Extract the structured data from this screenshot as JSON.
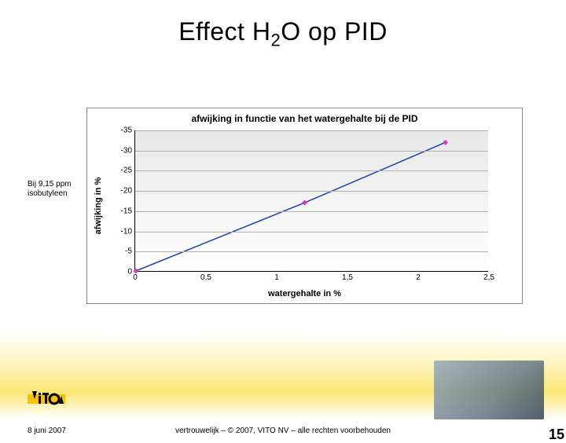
{
  "title": {
    "pre": "Effect H",
    "sub": "2",
    "post": "O op PID"
  },
  "side_note_line1": "Bij 9,15 ppm",
  "side_note_line2": "isobutyleen",
  "chart": {
    "type": "line",
    "title": "afwijking in functie van het watergehalte bij de PID",
    "xlabel": "watergehalte in %",
    "ylabel": "afwijking in %",
    "x_min": 0,
    "x_max": 2.5,
    "x_tick_step": 0.5,
    "y_min": 0,
    "y_max": -35,
    "y_tick_step": -5,
    "x_ticks": [
      "0",
      "0,5",
      "1",
      "1,5",
      "2",
      "2,5"
    ],
    "y_ticks": [
      "0",
      "-5",
      "-10",
      "-15",
      "-20",
      "-25",
      "-30",
      "-35"
    ],
    "series": {
      "x": [
        0,
        1.2,
        2.2
      ],
      "y": [
        0,
        -17,
        -32
      ],
      "line_color": "#2040b0",
      "line_width": 1.5,
      "marker_color": "#d040c0",
      "marker_size": 5,
      "marker_shape": "diamond"
    },
    "background_gradient_top": "#e8e8e8",
    "background_gradient_bottom": "#ffffff",
    "grid_color": "#b0b0b0"
  },
  "footer": {
    "date": "8 juni 2007",
    "copyright": "vertrouwelijk – © 2007, VITO NV – alle rechten voorbehouden",
    "page": "15"
  },
  "logo_colors": {
    "yellow": "#f5c400",
    "black": "#000000"
  }
}
